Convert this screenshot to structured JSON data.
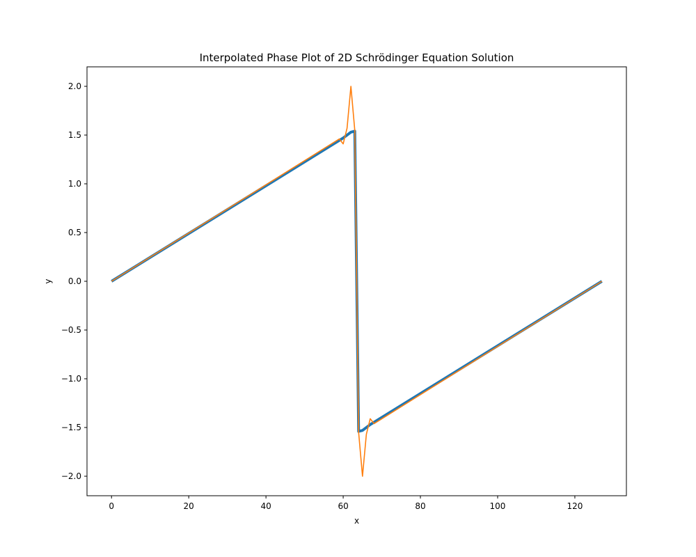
{
  "chart_data": {
    "type": "line",
    "title": "Interpolated Phase Plot of 2D Schrödinger Equation Solution",
    "xlabel": "x",
    "ylabel": "y",
    "xlim": [
      -6.35,
      133.35
    ],
    "ylim": [
      -2.2,
      2.2
    ],
    "xticks": [
      0,
      20,
      40,
      60,
      80,
      100,
      120
    ],
    "yticks": [
      -2.0,
      -1.5,
      -1.0,
      -0.5,
      0.0,
      0.5,
      1.0,
      1.5,
      2.0
    ],
    "xtick_labels": [
      "0",
      "20",
      "40",
      "60",
      "80",
      "100",
      "120"
    ],
    "ytick_labels": [
      "−2.0",
      "−1.5",
      "−1.0",
      "−0.5",
      "0.0",
      "0.5",
      "1.0",
      "1.5",
      "2.0"
    ],
    "grid": false,
    "series": [
      {
        "color": "#1f77b4",
        "line_width": "thick",
        "points": [
          [
            0,
            0.0
          ],
          [
            60,
            1.47
          ],
          [
            62,
            1.53
          ],
          [
            63,
            1.54
          ],
          [
            64,
            -1.54
          ],
          [
            65,
            -1.53
          ],
          [
            67,
            -1.47
          ],
          [
            127,
            0.0
          ]
        ]
      },
      {
        "color": "#ff7f0e",
        "line_width": "thin",
        "points": [
          [
            0,
            0.0
          ],
          [
            59,
            1.46
          ],
          [
            60,
            1.41
          ],
          [
            61,
            1.57
          ],
          [
            62,
            2.0
          ],
          [
            63,
            1.55
          ],
          [
            64,
            -1.55
          ],
          [
            65,
            -2.0
          ],
          [
            66,
            -1.57
          ],
          [
            67,
            -1.41
          ],
          [
            68,
            -1.46
          ],
          [
            127,
            0.0
          ]
        ]
      }
    ]
  }
}
